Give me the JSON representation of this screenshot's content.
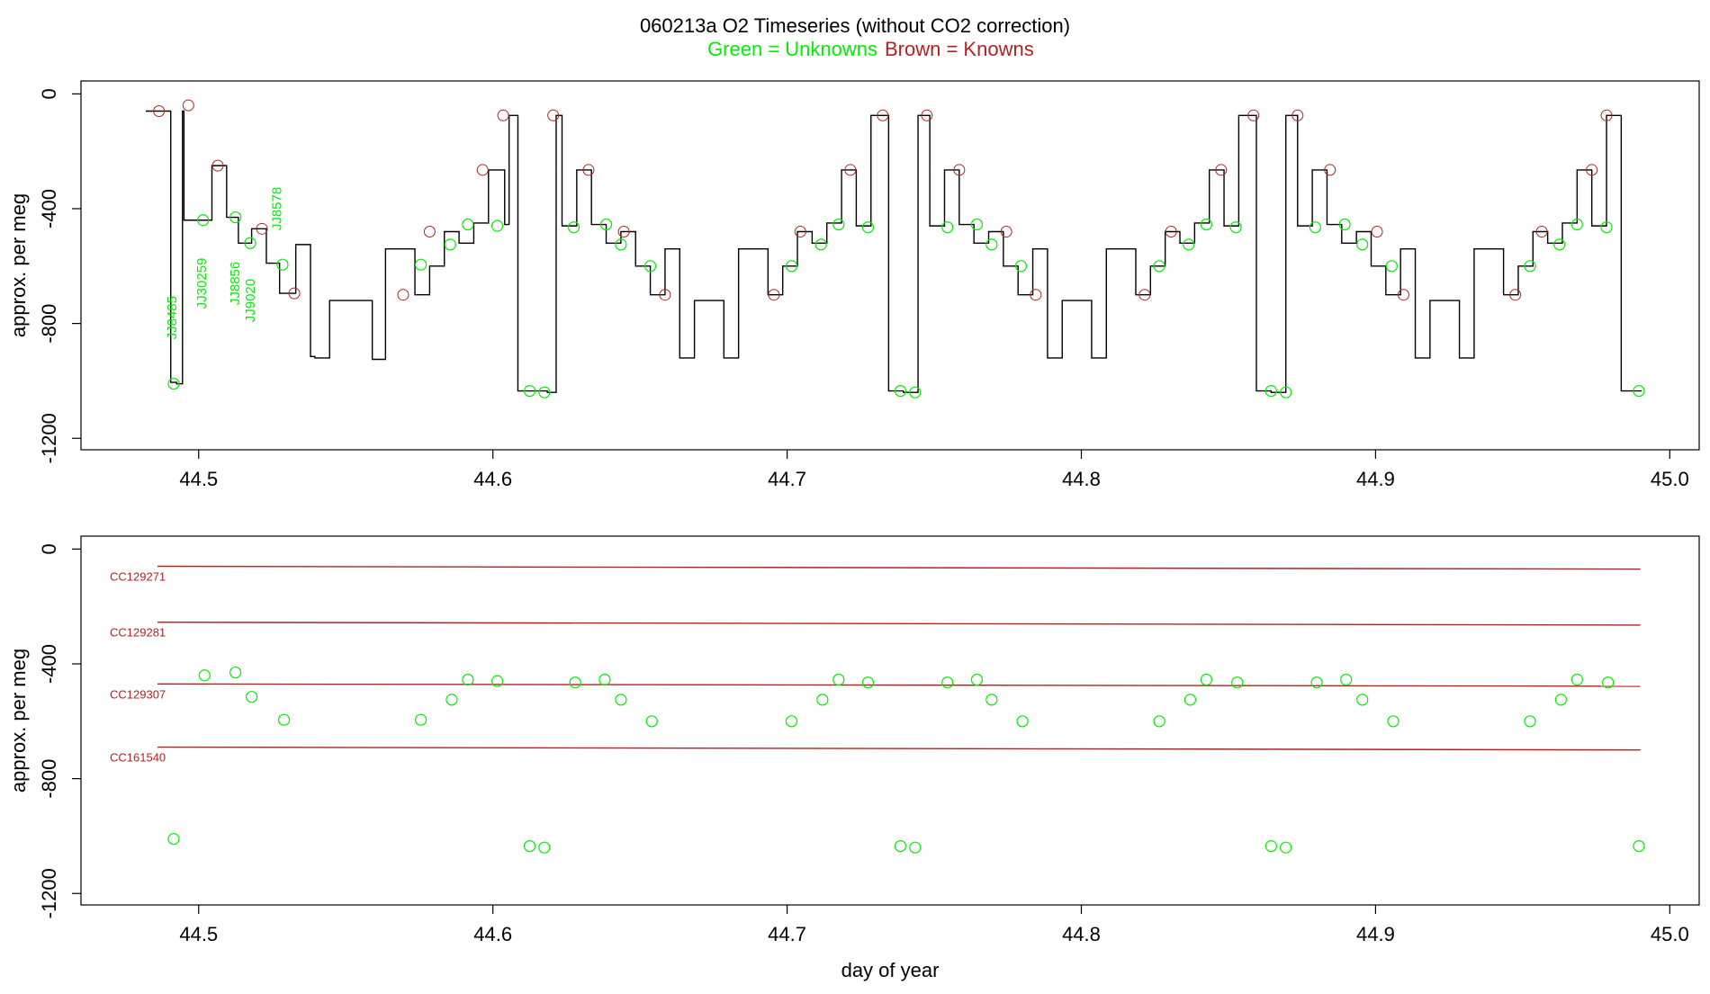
{
  "header": {
    "title": "060213a   O2 Timeseries (without CO2 correction)",
    "subtitle_green": "Green = Unknowns",
    "subtitle_brown": "Brown = Knowns"
  },
  "colors": {
    "unknown": "#00ee00",
    "known": "#b22222",
    "trace": "#000000",
    "frame": "#000000"
  },
  "chart_data": [
    {
      "type": "line",
      "ylabel": "approx. per meg",
      "xlabel": "",
      "xlim": [
        44.46,
        45.01
      ],
      "ylim": [
        -1240,
        45
      ],
      "x_ticks": [
        44.5,
        44.6,
        44.7,
        44.8,
        44.9,
        45.0
      ],
      "x_tick_labels": [
        "44.5",
        "44.6",
        "44.7",
        "44.8",
        "44.9",
        "45.0"
      ],
      "y_ticks": [
        0,
        -400,
        -800,
        -1200
      ],
      "y_tick_labels": [
        "0",
        "-400",
        "-800",
        "-1200"
      ],
      "grid": false,
      "annotations": [
        {
          "text": "JJ8485",
          "x": 44.4925,
          "y": -780
        },
        {
          "text": "JJ30259",
          "x": 44.5025,
          "y": -660
        },
        {
          "text": "JJ8856",
          "x": 44.5138,
          "y": -660
        },
        {
          "text": "JJ9020",
          "x": 44.519,
          "y": -720
        },
        {
          "text": "JJ8578",
          "x": 44.528,
          "y": -400
        }
      ],
      "series": [
        {
          "color": "#000000",
          "x": [
            44.482,
            44.487,
            44.4885,
            44.4905,
            44.4925,
            44.4945,
            44.495,
            44.5005,
            44.5045,
            44.5095,
            44.5135,
            44.518,
            44.523,
            44.5275,
            44.533,
            44.538,
            44.5395,
            44.5445,
            44.5495,
            44.559,
            44.5635,
            44.5685,
            44.5735,
            44.5785,
            44.5835,
            44.5885,
            44.5935,
            44.5985,
            44.604,
            44.6055,
            44.6085,
            44.6185,
            44.6215,
            44.6235,
            44.6285,
            44.6335,
            44.6385,
            44.6435,
            44.6485,
            44.6535,
            44.6585,
            44.6635,
            44.6685,
            44.6735,
            44.6785,
            44.6835,
            44.6885,
            44.6935,
            44.6985,
            44.7035,
            44.7085,
            44.7135,
            44.7185,
            44.7235,
            44.7285,
            44.7335,
            44.7345,
            44.7395,
            44.7445,
            44.7475,
            44.7485,
            44.7535,
            44.7585,
            44.7635,
            44.7685,
            44.7735,
            44.7785,
            44.7835,
            44.7885,
            44.7935,
            44.7985,
            44.8035,
            44.8085,
            44.8135,
            44.8185,
            44.8235,
            44.8285,
            44.8335,
            44.8385,
            44.8435,
            44.8485,
            44.8535,
            44.8585,
            44.8595,
            44.8645,
            44.8695,
            44.8725,
            44.8735,
            44.8785,
            44.8835,
            44.8885,
            44.8935,
            44.8985,
            44.9035,
            44.9085,
            44.9135,
            44.9185,
            44.9235,
            44.9285,
            44.9335,
            44.9385,
            44.9435,
            44.9485,
            44.9535,
            44.9585,
            44.9635,
            44.9685,
            44.9735,
            44.9785,
            44.9835,
            44.9885,
            44.9905
          ],
          "y": [
            -60,
            -60,
            -60,
            -1005,
            -1010,
            -60,
            -440,
            -440,
            -250,
            -430,
            -520,
            -470,
            -590,
            -695,
            -525,
            -915,
            -920,
            -720,
            -720,
            -925,
            -540,
            -540,
            -700,
            -600,
            -480,
            -520,
            -450,
            -265,
            -455,
            -75,
            -1035,
            -1040,
            -75,
            -460,
            -265,
            -455,
            -520,
            -480,
            -600,
            -700,
            -540,
            -920,
            -720,
            -720,
            -920,
            -540,
            -540,
            -700,
            -600,
            -480,
            -520,
            -450,
            -265,
            -460,
            -75,
            -75,
            -1035,
            -1040,
            -75,
            -75,
            -460,
            -265,
            -455,
            -520,
            -480,
            -600,
            -700,
            -540,
            -920,
            -720,
            -720,
            -920,
            -540,
            -540,
            -700,
            -600,
            -480,
            -520,
            -450,
            -265,
            -460,
            -75,
            -75,
            -1035,
            -1040,
            -75,
            -75,
            -460,
            -265,
            -455,
            -520,
            -480,
            -600,
            -700,
            -540,
            -920,
            -720,
            -720,
            -920,
            -540,
            -540,
            -700,
            -600,
            -480,
            -520,
            -450,
            -265,
            -460,
            -75,
            -1035,
            -1035,
            -1035
          ]
        }
      ],
      "known_points": {
        "x": [
          44.4865,
          44.4965,
          44.5065,
          44.5215,
          44.5325,
          44.5695,
          44.5785,
          44.5965,
          44.6035,
          44.6205,
          44.6325,
          44.6445,
          44.6585,
          44.6955,
          44.7045,
          44.7215,
          44.7325,
          44.7475,
          44.7585,
          44.7745,
          44.7845,
          44.8215,
          44.8305,
          44.8475,
          44.8585,
          44.8735,
          44.8845,
          44.9005,
          44.9095,
          44.9475,
          44.9565,
          44.9735,
          44.9785
        ],
        "y": [
          -60,
          -40,
          -250,
          -470,
          -695,
          -700,
          -480,
          -265,
          -75,
          -75,
          -265,
          -480,
          -700,
          -700,
          -480,
          -265,
          -75,
          -75,
          -265,
          -480,
          -700,
          -700,
          -480,
          -265,
          -75,
          -75,
          -265,
          -480,
          -700,
          -700,
          -480,
          -265,
          -75
        ]
      },
      "unknown_points": {
        "x": [
          44.4915,
          44.5015,
          44.5125,
          44.5175,
          44.5285,
          44.5755,
          44.5855,
          44.5915,
          44.6015,
          44.6125,
          44.6175,
          44.6275,
          44.6385,
          44.6435,
          44.6535,
          44.7015,
          44.7115,
          44.7175,
          44.7275,
          44.7385,
          44.7435,
          44.7545,
          44.7645,
          44.7695,
          44.7795,
          44.8265,
          44.8365,
          44.8425,
          44.8525,
          44.8645,
          44.8695,
          44.8795,
          44.8895,
          44.8955,
          44.9055,
          44.9525,
          44.9625,
          44.9685,
          44.9785,
          44.9895
        ],
        "y": [
          -1010,
          -440,
          -430,
          -520,
          -595,
          -595,
          -525,
          -455,
          -460,
          -1035,
          -1040,
          -465,
          -455,
          -525,
          -600,
          -600,
          -525,
          -455,
          -465,
          -1035,
          -1040,
          -465,
          -455,
          -525,
          -600,
          -600,
          -525,
          -455,
          -465,
          -1035,
          -1040,
          -465,
          -455,
          -525,
          -600,
          -600,
          -525,
          -455,
          -465,
          -1035
        ]
      }
    },
    {
      "type": "scatter",
      "ylabel": "approx. per meg",
      "xlabel": "day of year",
      "xlim": [
        44.46,
        45.01
      ],
      "ylim": [
        -1240,
        45
      ],
      "x_ticks": [
        44.5,
        44.6,
        44.7,
        44.8,
        44.9,
        45.0
      ],
      "x_tick_labels": [
        "44.5",
        "44.6",
        "44.7",
        "44.8",
        "44.9",
        "45.0"
      ],
      "y_ticks": [
        0,
        -400,
        -800,
        -1200
      ],
      "y_tick_labels": [
        "0",
        "-400",
        "-800",
        "-1200"
      ],
      "grid": false,
      "reference_lines": [
        {
          "label": "CC129271",
          "x": [
            44.486,
            44.99
          ],
          "y": [
            -60,
            -70
          ]
        },
        {
          "label": "CC129281",
          "x": [
            44.486,
            44.99
          ],
          "y": [
            -255,
            -265
          ]
        },
        {
          "label": "CC129307",
          "x": [
            44.486,
            44.99
          ],
          "y": [
            -470,
            -478
          ]
        },
        {
          "label": "CC161540",
          "x": [
            44.486,
            44.99
          ],
          "y": [
            -690,
            -700
          ]
        }
      ],
      "unknown_points": {
        "x": [
          44.4915,
          44.502,
          44.5125,
          44.518,
          44.529,
          44.5755,
          44.586,
          44.5915,
          44.6015,
          44.6125,
          44.6175,
          44.628,
          44.638,
          44.6435,
          44.654,
          44.7015,
          44.712,
          44.7175,
          44.7275,
          44.7385,
          44.7435,
          44.7545,
          44.7645,
          44.7695,
          44.78,
          44.8265,
          44.837,
          44.8425,
          44.853,
          44.8645,
          44.8695,
          44.88,
          44.89,
          44.8955,
          44.906,
          44.9525,
          44.963,
          44.9685,
          44.979,
          44.9895
        ],
        "y": [
          -1010,
          -440,
          -430,
          -515,
          -595,
          -595,
          -525,
          -455,
          -460,
          -1035,
          -1040,
          -465,
          -455,
          -525,
          -600,
          -600,
          -525,
          -455,
          -465,
          -1035,
          -1040,
          -465,
          -455,
          -525,
          -600,
          -600,
          -525,
          -455,
          -465,
          -1035,
          -1040,
          -465,
          -455,
          -525,
          -600,
          -600,
          -525,
          -455,
          -465,
          -1035
        ]
      }
    }
  ]
}
